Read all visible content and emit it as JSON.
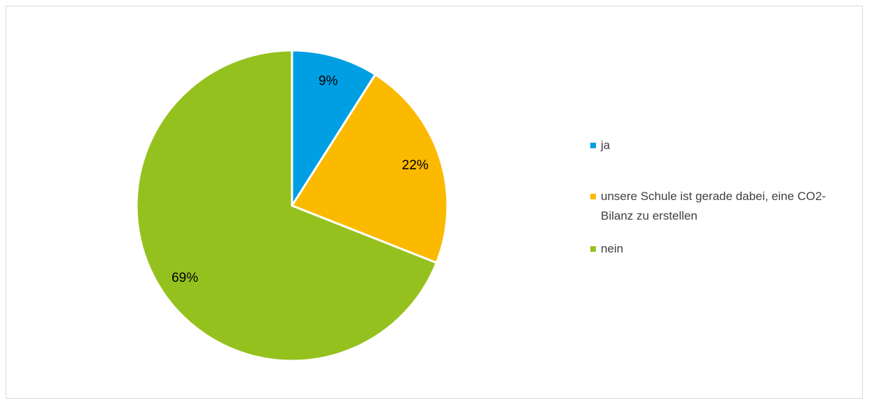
{
  "chart_data": {
    "type": "pie",
    "categories": [
      "ja",
      "unsere Schule ist gerade dabei, eine CO2-Bilanz zu erstellen",
      "nein"
    ],
    "values": [
      9,
      22,
      69
    ],
    "value_labels": [
      "9%",
      "22%",
      "69%"
    ],
    "colors": [
      "#009fe3",
      "#fbba00",
      "#95c11f"
    ],
    "legend": "right"
  }
}
